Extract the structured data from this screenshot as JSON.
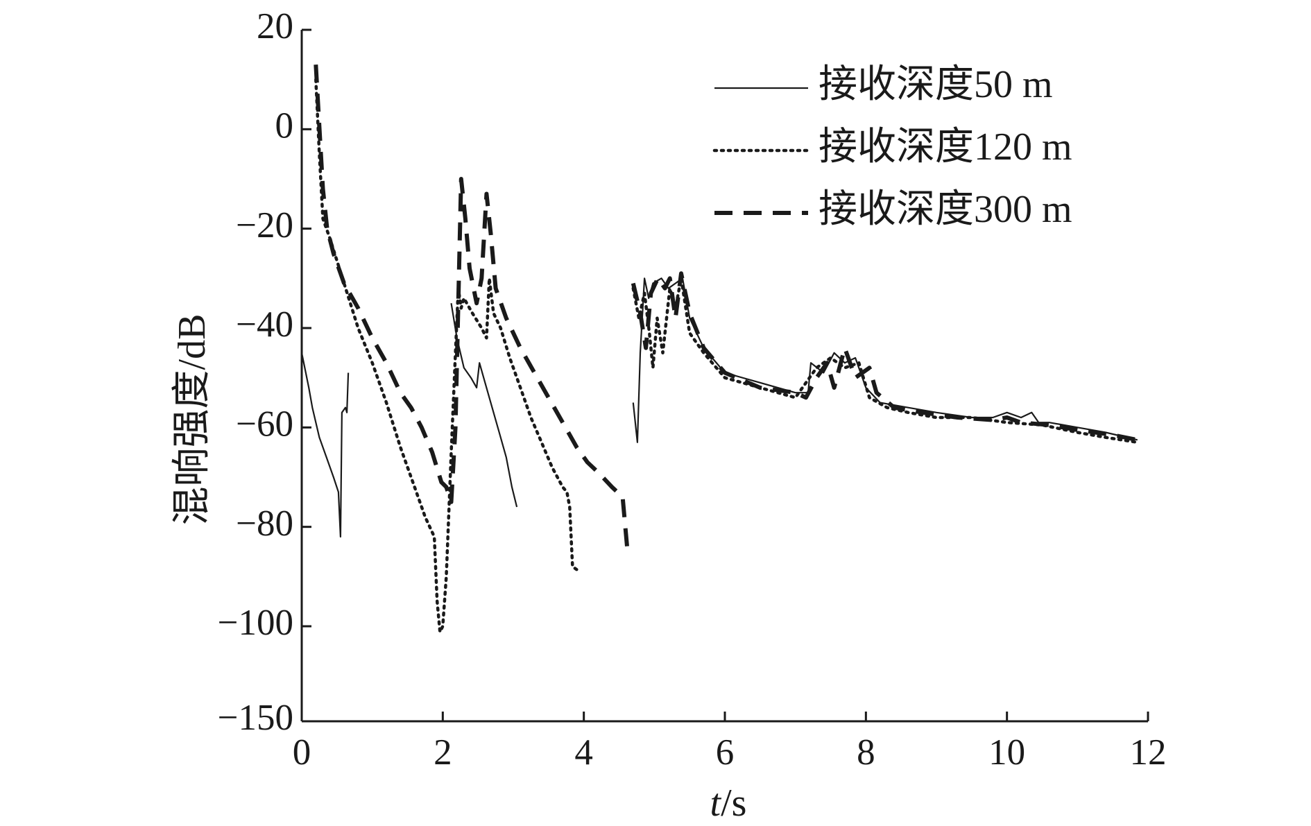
{
  "chart_data": {
    "type": "line",
    "title": "",
    "xlabel_italic": "t",
    "xlabel_rest": "/s",
    "ylabel": "混响强度/dB",
    "xlim": [
      0,
      12
    ],
    "ylim": [
      -150,
      20
    ],
    "x_ticks": [
      0,
      2,
      4,
      6,
      8,
      10,
      12
    ],
    "x_tick_labels": [
      "0",
      "2",
      "4",
      "6",
      "8",
      "10",
      "12"
    ],
    "y_ticks": [
      20,
      0,
      -20,
      -40,
      -60,
      -80,
      -100,
      -150
    ],
    "y_tick_labels": [
      "20",
      "0",
      "−20",
      "−40",
      "−60",
      "−80",
      "−100",
      "−150"
    ],
    "y_axis_break": {
      "segment_top": -100,
      "segment_bottom": -150,
      "note": "the -100 to -150 interval is compressed"
    },
    "grid": false,
    "legend_position": "top-right",
    "series": [
      {
        "name": "接收深度50 m",
        "style": "solid",
        "segments": [
          [
            [
              0.0,
              -45
            ],
            [
              0.1,
              -52
            ],
            [
              0.15,
              -56
            ],
            [
              0.25,
              -62
            ],
            [
              0.35,
              -66
            ],
            [
              0.45,
              -70
            ],
            [
              0.52,
              -73
            ],
            [
              0.55,
              -82
            ],
            [
              0.57,
              -57
            ],
            [
              0.62,
              -56
            ],
            [
              0.64,
              -57
            ],
            [
              0.66,
              -49
            ]
          ],
          [
            [
              2.12,
              -35
            ],
            [
              2.2,
              -42
            ],
            [
              2.3,
              -48
            ],
            [
              2.4,
              -50
            ],
            [
              2.48,
              -52
            ],
            [
              2.52,
              -47
            ],
            [
              2.6,
              -51
            ],
            [
              2.7,
              -56
            ],
            [
              2.8,
              -61
            ],
            [
              2.9,
              -66
            ],
            [
              2.98,
              -72
            ],
            [
              3.05,
              -76
            ]
          ],
          [
            [
              4.7,
              -55
            ],
            [
              4.76,
              -63
            ],
            [
              4.8,
              -45
            ],
            [
              4.86,
              -30
            ],
            [
              4.92,
              -34
            ],
            [
              4.98,
              -31
            ],
            [
              5.1,
              -30
            ],
            [
              5.2,
              -32
            ],
            [
              5.3,
              -31
            ],
            [
              5.4,
              -30
            ],
            [
              5.5,
              -38
            ],
            [
              5.7,
              -44
            ],
            [
              6.0,
              -49
            ],
            [
              6.5,
              -51
            ],
            [
              7.0,
              -53
            ],
            [
              7.18,
              -53
            ],
            [
              7.22,
              -47
            ],
            [
              7.4,
              -49
            ],
            [
              7.55,
              -45
            ],
            [
              7.7,
              -47
            ],
            [
              7.85,
              -46
            ],
            [
              8.0,
              -52
            ],
            [
              8.2,
              -55
            ],
            [
              8.6,
              -56
            ],
            [
              9.0,
              -57
            ],
            [
              9.5,
              -58
            ],
            [
              9.8,
              -58
            ],
            [
              10.0,
              -57
            ],
            [
              10.2,
              -58
            ],
            [
              10.35,
              -57
            ],
            [
              10.45,
              -59
            ],
            [
              10.6,
              -59
            ],
            [
              11.0,
              -60
            ],
            [
              11.4,
              -61
            ],
            [
              11.85,
              -62.5
            ]
          ]
        ]
      },
      {
        "name": "接收深度120 m",
        "style": "dotted",
        "segments": [
          [
            [
              0.2,
              10
            ],
            [
              0.25,
              -5
            ],
            [
              0.3,
              -18
            ],
            [
              0.4,
              -22
            ],
            [
              0.6,
              -31
            ],
            [
              0.8,
              -40
            ],
            [
              1.0,
              -47
            ],
            [
              1.2,
              -55
            ],
            [
              1.4,
              -64
            ],
            [
              1.6,
              -72
            ],
            [
              1.75,
              -78
            ],
            [
              1.88,
              -82
            ],
            [
              1.92,
              -95
            ],
            [
              1.96,
              -103
            ],
            [
              2.0,
              -100
            ],
            [
              2.05,
              -90
            ],
            [
              2.12,
              -65
            ],
            [
              2.18,
              -45
            ],
            [
              2.22,
              -32
            ],
            [
              2.26,
              -36
            ],
            [
              2.3,
              -34
            ],
            [
              2.42,
              -37
            ],
            [
              2.55,
              -40
            ],
            [
              2.62,
              -42
            ],
            [
              2.66,
              -30
            ],
            [
              2.72,
              -37
            ],
            [
              2.82,
              -40
            ],
            [
              2.95,
              -46
            ],
            [
              3.1,
              -52
            ],
            [
              3.25,
              -58
            ],
            [
              3.4,
              -63
            ],
            [
              3.55,
              -68
            ],
            [
              3.7,
              -72
            ],
            [
              3.76,
              -73
            ],
            [
              3.8,
              -76
            ],
            [
              3.84,
              -88
            ],
            [
              3.94,
              -89
            ]
          ],
          [
            [
              4.7,
              -32
            ],
            [
              4.78,
              -38
            ],
            [
              4.86,
              -33
            ],
            [
              4.93,
              -41
            ],
            [
              4.98,
              -48
            ],
            [
              5.04,
              -38
            ],
            [
              5.12,
              -45
            ],
            [
              5.22,
              -32
            ],
            [
              5.3,
              -36
            ],
            [
              5.38,
              -30
            ],
            [
              5.5,
              -41
            ],
            [
              5.7,
              -45
            ],
            [
              6.0,
              -50
            ],
            [
              6.5,
              -52
            ],
            [
              7.0,
              -54
            ],
            [
              7.3,
              -48
            ],
            [
              7.5,
              -46
            ],
            [
              7.7,
              -48
            ],
            [
              7.9,
              -47
            ],
            [
              8.05,
              -54
            ],
            [
              8.3,
              -56
            ],
            [
              8.6,
              -57
            ],
            [
              9.0,
              -58
            ],
            [
              9.5,
              -58
            ],
            [
              10.0,
              -59
            ],
            [
              10.5,
              -59.5
            ],
            [
              11.0,
              -61
            ],
            [
              11.4,
              -62
            ],
            [
              11.85,
              -63
            ]
          ]
        ]
      },
      {
        "name": "接收深度300 m",
        "style": "dashed",
        "segments": [
          [
            [
              0.2,
              13
            ],
            [
              0.26,
              -2
            ],
            [
              0.3,
              -12
            ],
            [
              0.36,
              -20
            ],
            [
              0.45,
              -25
            ],
            [
              0.6,
              -31
            ],
            [
              0.8,
              -36
            ],
            [
              1.0,
              -42
            ],
            [
              1.2,
              -47
            ],
            [
              1.4,
              -53
            ],
            [
              1.55,
              -56
            ],
            [
              1.7,
              -60
            ],
            [
              1.85,
              -65
            ],
            [
              1.98,
              -71
            ],
            [
              2.05,
              -72
            ],
            [
              2.12,
              -75
            ],
            [
              2.18,
              -60
            ],
            [
              2.22,
              -35
            ],
            [
              2.26,
              -10
            ],
            [
              2.32,
              -18
            ],
            [
              2.38,
              -28
            ],
            [
              2.48,
              -35
            ],
            [
              2.55,
              -30
            ],
            [
              2.62,
              -13
            ],
            [
              2.68,
              -21
            ],
            [
              2.75,
              -32
            ],
            [
              2.9,
              -38
            ],
            [
              3.1,
              -44
            ],
            [
              3.3,
              -49
            ],
            [
              3.5,
              -54
            ],
            [
              3.7,
              -59
            ],
            [
              3.9,
              -64
            ],
            [
              4.05,
              -67
            ],
            [
              4.2,
              -69
            ],
            [
              4.4,
              -72
            ],
            [
              4.55,
              -74
            ],
            [
              4.62,
              -85
            ]
          ],
          [
            [
              4.7,
              -31
            ],
            [
              4.8,
              -37
            ],
            [
              4.88,
              -44
            ],
            [
              4.95,
              -33
            ],
            [
              5.05,
              -30
            ],
            [
              5.15,
              -32
            ],
            [
              5.22,
              -30
            ],
            [
              5.3,
              -38
            ],
            [
              5.38,
              -29
            ],
            [
              5.5,
              -37
            ],
            [
              5.7,
              -44
            ],
            [
              6.0,
              -49
            ],
            [
              6.5,
              -52
            ],
            [
              7.0,
              -53
            ],
            [
              7.15,
              -54
            ],
            [
              7.3,
              -50
            ],
            [
              7.45,
              -47
            ],
            [
              7.55,
              -52
            ],
            [
              7.7,
              -44
            ],
            [
              7.85,
              -50
            ],
            [
              8.05,
              -48
            ],
            [
              8.15,
              -53
            ],
            [
              8.4,
              -56
            ],
            [
              8.8,
              -57
            ],
            [
              9.3,
              -58
            ],
            [
              9.8,
              -58.5
            ],
            [
              10.0,
              -58
            ],
            [
              10.2,
              -59
            ],
            [
              10.6,
              -59.5
            ],
            [
              11.0,
              -60.5
            ],
            [
              11.5,
              -61.5
            ],
            [
              11.85,
              -62.5
            ]
          ]
        ]
      }
    ]
  }
}
